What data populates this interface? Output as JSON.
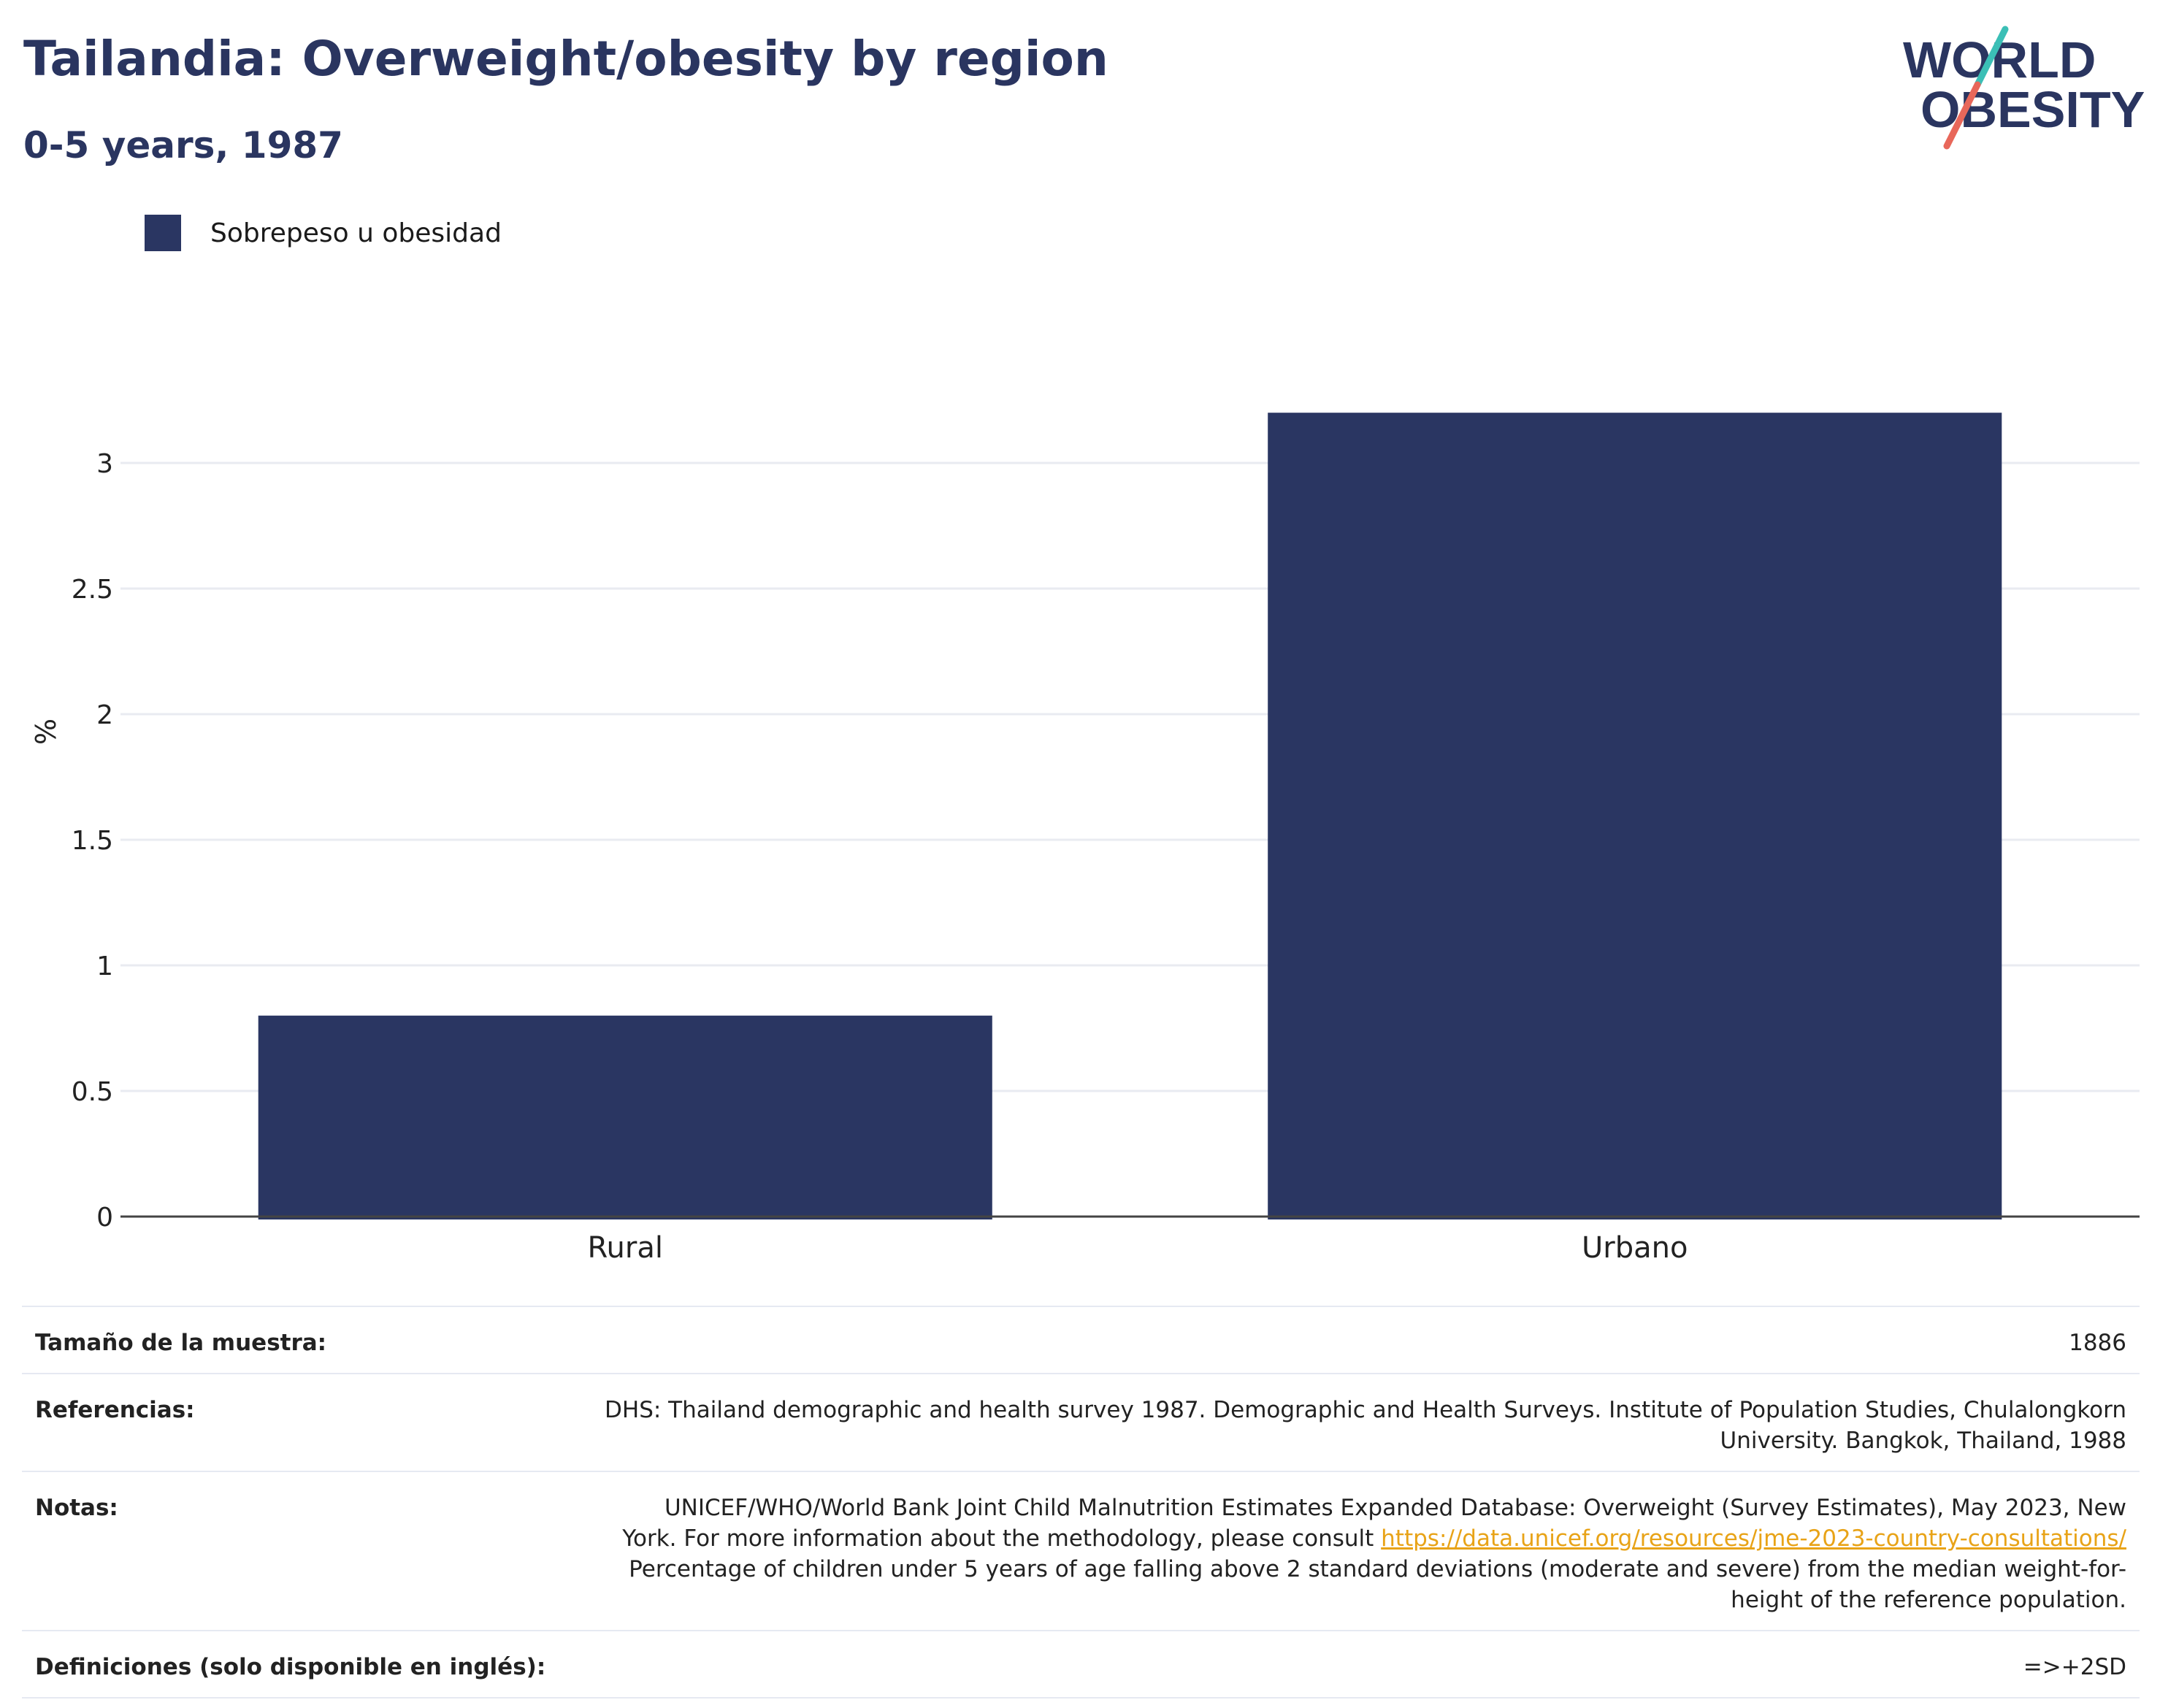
{
  "header": {
    "title": "Tailandia: Overweight/obesity by region",
    "subtitle": "0-5 years, 1987"
  },
  "logo": {
    "line1": "WORLD",
    "line2": "OBESITY",
    "text_color": "#2a3560",
    "slash_colors": [
      "#3bbfb6",
      "#e8675a"
    ]
  },
  "legend": {
    "label": "Sobrepeso u obesidad",
    "color": "#2a3662"
  },
  "chart_data": {
    "type": "bar",
    "categories": [
      "Rural",
      "Urbano"
    ],
    "series": [
      {
        "name": "Sobrepeso u obesidad",
        "values": [
          0.8,
          3.2
        ],
        "color": "#2a3662"
      }
    ],
    "ylabel": "%",
    "xlabel": "",
    "ylim": [
      0,
      3.5
    ],
    "yticks": [
      0,
      0.5,
      1,
      1.5,
      2,
      2.5,
      3
    ],
    "ytick_labels": [
      "0",
      "0.5",
      "1",
      "1.5",
      "2",
      "2.5",
      "3"
    ],
    "grid": true,
    "legend_position": "top-left"
  },
  "info": {
    "sample_size_label": "Tamaño de la muestra:",
    "sample_size_value": "1886",
    "references_label": "Referencias:",
    "references_line1": "DHS: Thailand demographic and health survey 1987. Demographic and Health Surveys. Institute of Population Studies, Chulalongkorn",
    "references_line2": "University. Bangkok, Thailand, 1988",
    "notes_label": "Notas:",
    "notes_line1": "UNICEF/WHO/World Bank Joint Child Malnutrition Estimates Expanded Database: Overweight (Survey Estimates), May 2023, New",
    "notes_line2_pre": "York. For more information about the methodology, please consult",
    "notes_link": "https://data.unicef.org/resources/jme-2023-country-consultations/",
    "notes_line3": "Percentage of children under 5 years of age falling above 2 standard deviations (moderate and severe) from the median weight-for-",
    "notes_line4": "height of the reference population.",
    "definitions_label": "Definiciones (solo disponible en inglés):",
    "definitions_value": "=>+2SD"
  }
}
